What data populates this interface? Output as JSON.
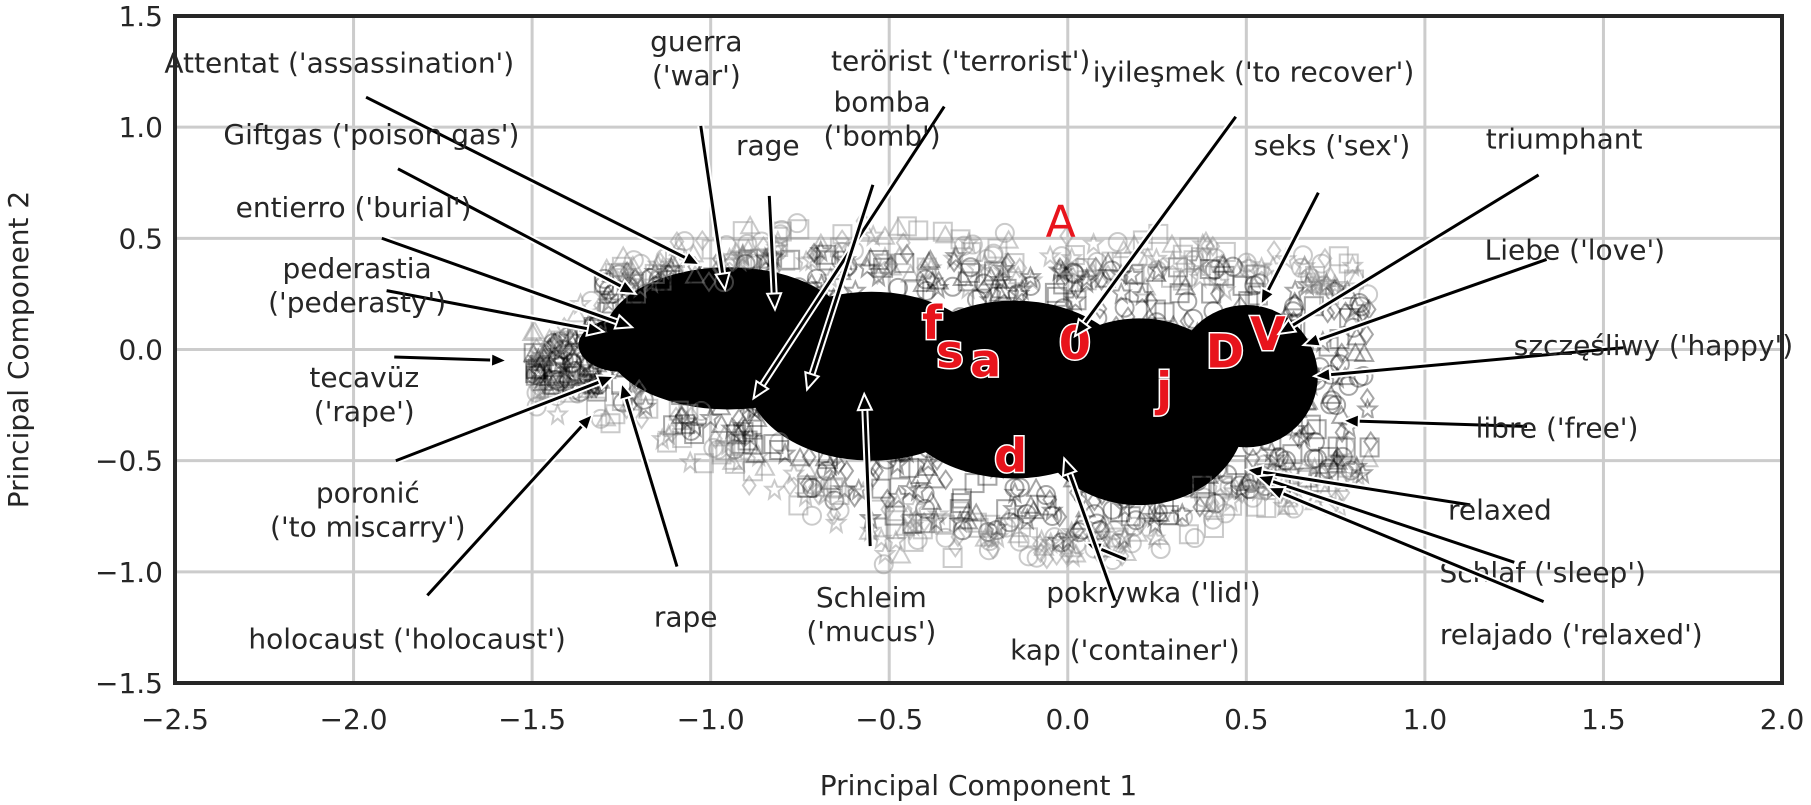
{
  "chart_data": {
    "type": "scatter",
    "xlabel": "Principal Component 1",
    "ylabel": "Principal Component 2",
    "xlim": [
      -2.5,
      2.0
    ],
    "ylim": [
      -1.5,
      1.5
    ],
    "x_ticks": [
      -2.5,
      -2.0,
      -1.5,
      -1.0,
      -0.5,
      0.0,
      0.5,
      1.0,
      1.5,
      2.0
    ],
    "y_ticks": [
      -1.5,
      -1.0,
      -0.5,
      0.0,
      0.5,
      1.0,
      1.5
    ],
    "x_tick_labels": [
      "−2.5",
      "−2.0",
      "−1.5",
      "−1.0",
      "−0.5",
      "0.0",
      "0.5",
      "1.0",
      "1.5",
      "2.0"
    ],
    "y_tick_labels": [
      "−1.5",
      "−1.0",
      "−0.5",
      "0.0",
      "0.5",
      "1.0",
      "1.5"
    ],
    "grid": true,
    "colors": {
      "cloud": "#000000",
      "outlier_markers": "#8c8c8c",
      "letters": "#e8141c",
      "grid": "#cccccc",
      "frame": "#262626"
    },
    "cloud_region": {
      "x_range": [
        -1.5,
        0.85
      ],
      "y_range": [
        -0.95,
        0.6
      ],
      "marker_shapes": [
        "square",
        "circle",
        "triangle",
        "diamond",
        "star"
      ]
    },
    "letter_points": [
      {
        "label": "A",
        "x": -0.02,
        "y": 0.58,
        "style": "plain"
      },
      {
        "label": "f",
        "x": -0.38,
        "y": 0.12,
        "style": "bold"
      },
      {
        "label": "s",
        "x": -0.33,
        "y": -0.01,
        "style": "bold"
      },
      {
        "label": "a",
        "x": -0.23,
        "y": -0.05,
        "style": "bold"
      },
      {
        "label": "0",
        "x": 0.02,
        "y": 0.03,
        "style": "bold"
      },
      {
        "label": "j",
        "x": 0.27,
        "y": -0.18,
        "style": "bold"
      },
      {
        "label": "D",
        "x": 0.44,
        "y": -0.01,
        "style": "bold"
      },
      {
        "label": "V",
        "x": 0.56,
        "y": 0.07,
        "style": "bold"
      },
      {
        "label": "d",
        "x": -0.16,
        "y": -0.48,
        "style": "bold"
      }
    ],
    "annotations": [
      {
        "lines": [
          "Attentat ('assassination')"
        ],
        "text_x": -2.04,
        "text_y": 1.29,
        "point_x": -1.03,
        "point_y": 0.38
      },
      {
        "lines": [
          "guerra",
          "('war')"
        ],
        "text_x": -1.04,
        "text_y": 1.31,
        "point_x": -0.96,
        "point_y": 0.27
      },
      {
        "lines": [
          "terörist ('terrorist')"
        ],
        "text_x": -0.3,
        "text_y": 1.3,
        "point_x": -0.88,
        "point_y": -0.22
      },
      {
        "lines": [
          "Giftgas ('poison gas')"
        ],
        "text_x": -1.95,
        "text_y": 0.97,
        "point_x": -1.21,
        "point_y": 0.25
      },
      {
        "lines": [
          "rage"
        ],
        "text_x": -0.84,
        "text_y": 0.92,
        "point_x": -0.82,
        "point_y": 0.18
      },
      {
        "lines": [
          "bomba",
          "('bomb')"
        ],
        "text_x": -0.52,
        "text_y": 1.04,
        "point_x": -0.73,
        "point_y": -0.18
      },
      {
        "lines": [
          "iyileşmek ('to recover')"
        ],
        "text_x": 0.52,
        "text_y": 1.25,
        "point_x": 0.02,
        "point_y": 0.06
      },
      {
        "lines": [
          "seks ('sex')"
        ],
        "text_x": 0.74,
        "text_y": 0.92,
        "point_x": 0.54,
        "point_y": 0.2
      },
      {
        "lines": [
          "triumphant"
        ],
        "text_x": 1.39,
        "text_y": 0.95,
        "point_x": 0.59,
        "point_y": 0.07
      },
      {
        "lines": [
          "entierro ('burial')"
        ],
        "text_x": -2.0,
        "text_y": 0.64,
        "point_x": -1.22,
        "point_y": 0.1
      },
      {
        "lines": [
          "Liebe ('love')"
        ],
        "text_x": 1.42,
        "text_y": 0.45,
        "point_x": 0.66,
        "point_y": 0.02
      },
      {
        "lines": [
          "pederastia",
          "('pederasty')"
        ],
        "text_x": -1.99,
        "text_y": 0.29,
        "point_x": -1.3,
        "point_y": 0.08
      },
      {
        "lines": [
          "szczęśliwy ('happy')"
        ],
        "text_x": 1.64,
        "text_y": 0.02,
        "point_x": 0.69,
        "point_y": -0.12
      },
      {
        "lines": [
          "tecavüz",
          "('rape')"
        ],
        "text_x": -1.97,
        "text_y": -0.2,
        "point_x": -1.57,
        "point_y": -0.05
      },
      {
        "lines": [
          "libre ('free')"
        ],
        "text_x": 1.37,
        "text_y": -0.35,
        "point_x": 0.77,
        "point_y": -0.32
      },
      {
        "lines": [
          "poronić",
          "('to miscarry')"
        ],
        "text_x": -1.96,
        "text_y": -0.72,
        "point_x": -1.27,
        "point_y": -0.12
      },
      {
        "lines": [
          "relaxed"
        ],
        "text_x": 1.21,
        "text_y": -0.72,
        "point_x": 0.5,
        "point_y": -0.54
      },
      {
        "lines": [
          "Schlaf ('sleep')"
        ],
        "text_x": 1.33,
        "text_y": -1.0,
        "point_x": 0.53,
        "point_y": -0.57
      },
      {
        "lines": [
          "holocaust ('holocaust')"
        ],
        "text_x": -1.85,
        "text_y": -1.3,
        "point_x": -1.33,
        "point_y": -0.29
      },
      {
        "lines": [
          "rape"
        ],
        "text_x": -1.07,
        "text_y": -1.2,
        "point_x": -1.25,
        "point_y": -0.15
      },
      {
        "lines": [
          "Schleim",
          "('mucus')"
        ],
        "text_x": -0.55,
        "text_y": -1.19,
        "point_x": -0.57,
        "point_y": -0.2
      },
      {
        "lines": [
          "pokrywka ('lid')"
        ],
        "text_x": 0.24,
        "text_y": -1.09,
        "point_x": 0.05,
        "point_y": -0.87
      },
      {
        "lines": [
          "kap ('container')"
        ],
        "text_x": 0.16,
        "text_y": -1.35,
        "point_x": -0.01,
        "point_y": -0.49
      },
      {
        "lines": [
          "relajado ('relaxed')"
        ],
        "text_x": 1.41,
        "text_y": -1.28,
        "point_x": 0.56,
        "point_y": -0.62
      }
    ]
  }
}
